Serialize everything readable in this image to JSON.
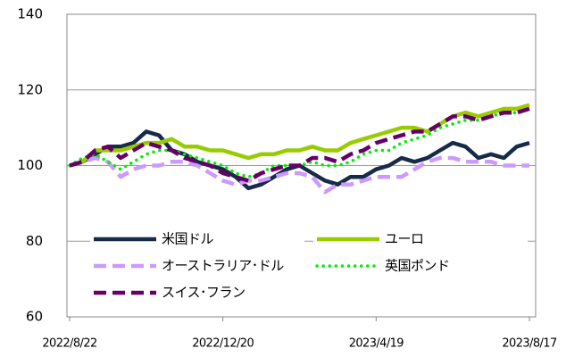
{
  "chart_data": {
    "type": "line",
    "categories": [
      "2022/8/22",
      null,
      null,
      null,
      null,
      null,
      null,
      null,
      null,
      null,
      null,
      null,
      "2022/12/20",
      null,
      null,
      null,
      null,
      null,
      null,
      null,
      null,
      null,
      null,
      null,
      "2023/4/19",
      null,
      null,
      null,
      null,
      null,
      null,
      null,
      null,
      null,
      null,
      null,
      "2023/8/17"
    ],
    "series": [
      {
        "name": "米国ドル",
        "color": "#172a48",
        "style": "solid",
        "values": [
          100,
          101,
          103,
          105,
          105,
          106,
          109,
          108,
          104,
          103,
          101,
          100,
          99,
          97,
          94,
          95,
          97,
          99,
          100,
          98,
          96,
          95,
          97,
          97,
          99,
          100,
          102,
          101,
          102,
          104,
          106,
          105,
          102,
          103,
          102,
          105,
          106
        ]
      },
      {
        "name": "ユーロ",
        "color": "#99cc00",
        "style": "solid",
        "values": [
          100,
          101,
          104,
          104,
          104,
          105,
          106,
          106,
          107,
          105,
          105,
          104,
          104,
          103,
          102,
          103,
          103,
          104,
          104,
          105,
          104,
          104,
          106,
          107,
          108,
          109,
          110,
          110,
          109,
          111,
          113,
          114,
          113,
          114,
          115,
          115,
          116
        ]
      },
      {
        "name": "オーストラリア･ドル",
        "color": "#cc99ff",
        "style": "dashed",
        "values": [
          100,
          101,
          102,
          101,
          97,
          99,
          100,
          100,
          101,
          101,
          100,
          98,
          96,
          95,
          96,
          96,
          97,
          98,
          98,
          97,
          93,
          95,
          95,
          96,
          97,
          97,
          97,
          99,
          101,
          102,
          102,
          101,
          101,
          101,
          100,
          100,
          100
        ]
      },
      {
        "name": "英国ポンド",
        "color": "#00ee00",
        "style": "dotted",
        "values": [
          100,
          102,
          103,
          101,
          99,
          101,
          103,
          104,
          104,
          103,
          102,
          101,
          100,
          98,
          97,
          98,
          100,
          100,
          100,
          101,
          100,
          100,
          101,
          103,
          104,
          104,
          106,
          107,
          108,
          110,
          111,
          112,
          112,
          113,
          114,
          114,
          115
        ]
      },
      {
        "name": "スイス･フラン",
        "color": "#660066",
        "style": "dashed",
        "values": [
          100,
          101,
          104,
          105,
          102,
          104,
          106,
          105,
          104,
          102,
          101,
          100,
          98,
          97,
          96,
          98,
          99,
          100,
          100,
          102,
          102,
          101,
          103,
          104,
          106,
          107,
          108,
          109,
          109,
          111,
          113,
          113,
          112,
          113,
          114,
          114,
          115
        ]
      }
    ],
    "ylim": [
      60,
      140
    ],
    "yticks": [
      60,
      80,
      100,
      120,
      140
    ],
    "grid": true
  }
}
